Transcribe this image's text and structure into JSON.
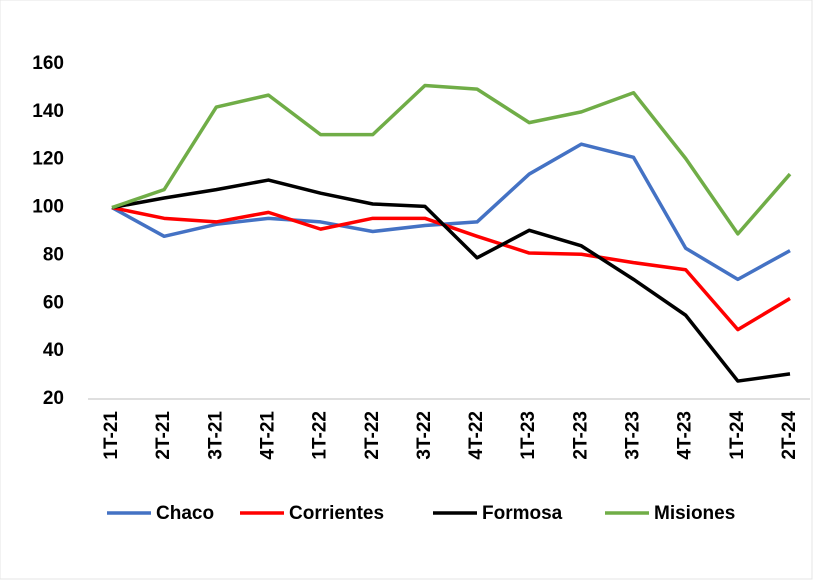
{
  "chart_data": {
    "type": "line",
    "categories": [
      "1T-21",
      "2T-21",
      "3T-21",
      "4T-21",
      "1T-22",
      "2T-22",
      "3T-22",
      "4T-22",
      "1T-23",
      "2T-23",
      "3T-23",
      "4T-23",
      "1T-24",
      "2T-24"
    ],
    "series": [
      {
        "name": "Chaco",
        "color": "#4472c4",
        "values": [
          100,
          88,
          93,
          95.5,
          94,
          90,
          92.5,
          94,
          114,
          126.5,
          121,
          83,
          70,
          82
        ]
      },
      {
        "name": "Corrientes",
        "color": "#ff0000",
        "values": [
          100,
          95.5,
          94,
          98,
          91,
          95.5,
          95.5,
          88,
          81,
          80.5,
          77,
          74,
          49,
          62
        ]
      },
      {
        "name": "Formosa",
        "color": "#000000",
        "values": [
          100,
          104,
          107.5,
          111.5,
          106,
          101.5,
          100.5,
          79,
          90.5,
          84,
          70,
          55,
          27.5,
          30.5
        ]
      },
      {
        "name": "Misiones",
        "color": "#70ad47",
        "values": [
          100,
          107.5,
          142,
          147,
          130.5,
          130.5,
          151,
          149.5,
          135.5,
          140,
          148,
          120.5,
          89,
          114
        ]
      }
    ],
    "ylim": [
      20,
      160
    ],
    "yticks": [
      20,
      40,
      60,
      80,
      100,
      120,
      140,
      160
    ],
    "grid": false,
    "legend": "bottom"
  }
}
